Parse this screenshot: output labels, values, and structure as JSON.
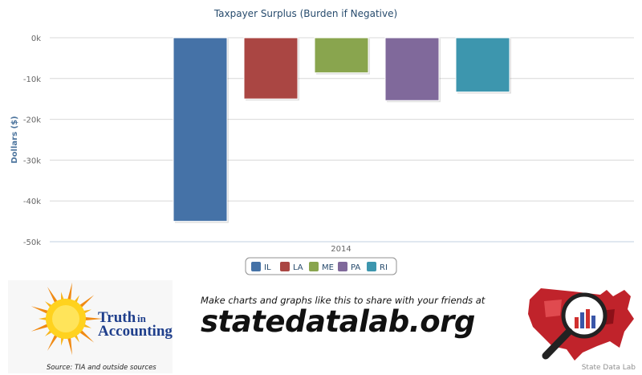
{
  "chart_data": {
    "type": "bar",
    "title": "Taxpayer Surplus (Burden if Negative)",
    "xlabel": "",
    "ylabel": "Dollars ($)",
    "categories": [
      "2014"
    ],
    "series": [
      {
        "name": "IL",
        "values": [
          -45000
        ],
        "color": "#4572a7"
      },
      {
        "name": "LA",
        "values": [
          -15000
        ],
        "color": "#aa4643"
      },
      {
        "name": "ME",
        "values": [
          -8600
        ],
        "color": "#89a54e"
      },
      {
        "name": "PA",
        "values": [
          -15400
        ],
        "color": "#80699b"
      },
      {
        "name": "RI",
        "values": [
          -13300
        ],
        "color": "#3d96ae"
      }
    ],
    "ylim": [
      -50000,
      0
    ],
    "yticks": [
      0,
      -10000,
      -20000,
      -30000,
      -40000,
      -50000
    ],
    "ytick_labels": [
      "0k",
      "-10k",
      "-20k",
      "-30k",
      "-40k",
      "-50k"
    ],
    "grid": true,
    "legend": "bottom-center"
  },
  "footer": {
    "tia_brand_line1": "Truth",
    "tia_brand_line1_suffix": "in",
    "tia_brand_line2": "Accounting",
    "source_text": "Source: TIA and outside sources",
    "tagline": "Make charts and graphs like this to share with your friends at",
    "site": "statedatalab.org",
    "credit": "State Data Lab"
  }
}
